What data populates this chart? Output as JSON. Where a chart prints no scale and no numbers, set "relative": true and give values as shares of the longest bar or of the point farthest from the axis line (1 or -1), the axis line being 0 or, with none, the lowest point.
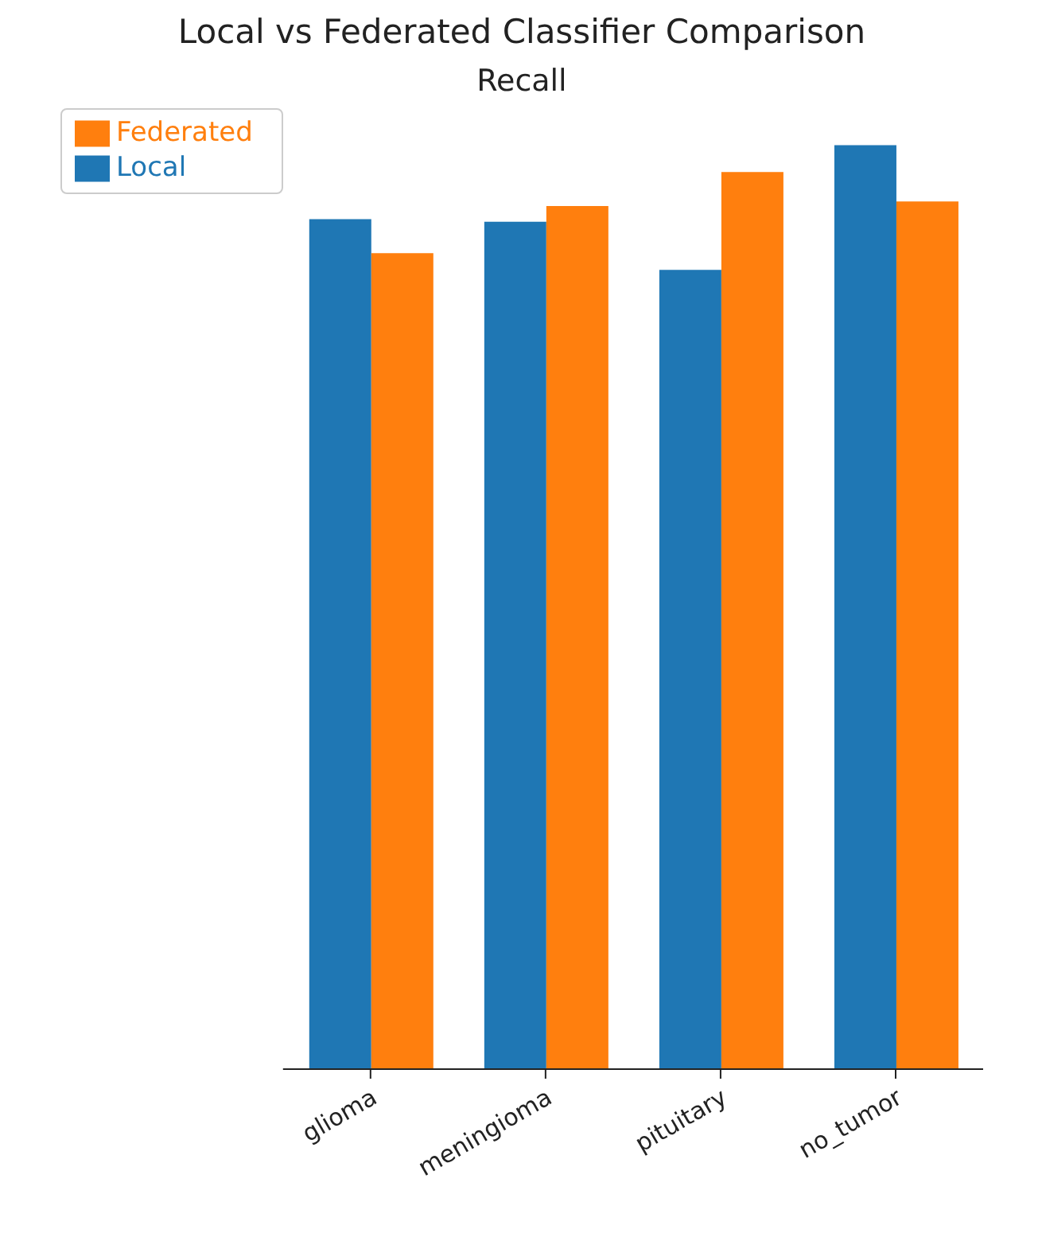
{
  "chart_data": {
    "type": "bar",
    "title": "Local vs Federated Classifier Comparison",
    "subtitle": "Recall",
    "categories": [
      "glioma",
      "meningioma",
      "pituitary",
      "no_tumor"
    ],
    "relative": true,
    "legend": "top left",
    "series": [
      {
        "name": "Local",
        "color": "#1f77b4",
        "values": [
          0.92,
          0.917,
          0.865,
          1
        ]
      },
      {
        "name": "Federated",
        "color": "#ff7f0e",
        "values": [
          0.883,
          0.934,
          0.971,
          0.939
        ]
      }
    ]
  }
}
